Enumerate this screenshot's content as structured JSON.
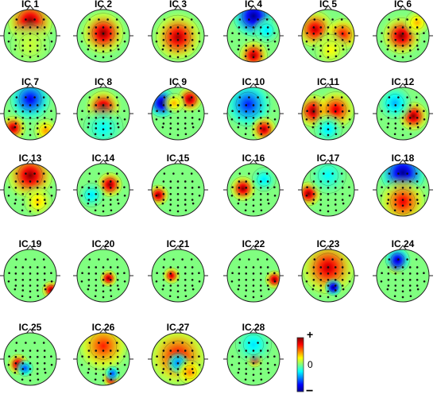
{
  "figure": {
    "colorbar": {
      "top_label": "+",
      "mid_label": "0",
      "bottom_label": "−"
    },
    "colormap": [
      "#00008f",
      "#0000ff",
      "#0080ff",
      "#00ffff",
      "#80ff80",
      "#ffff00",
      "#ff8000",
      "#ff0000",
      "#800000"
    ],
    "components": [
      {
        "label": "IC 1",
        "blobs": [
          [
            0.0,
            -0.55,
            0.55,
            1.0
          ],
          [
            0.0,
            0.35,
            0.5,
            0.15
          ]
        ]
      },
      {
        "label": "IC 2",
        "blobs": [
          [
            0.0,
            -0.1,
            0.5,
            1.0
          ]
        ]
      },
      {
        "label": "IC 3",
        "blobs": [
          [
            0.0,
            0.05,
            0.55,
            0.95
          ]
        ]
      },
      {
        "label": "IC 4",
        "blobs": [
          [
            0.0,
            -0.75,
            0.5,
            -1.0
          ],
          [
            0.0,
            0.75,
            0.35,
            0.95
          ],
          [
            0.5,
            -0.2,
            0.3,
            -0.3
          ]
        ]
      },
      {
        "label": "IC 5",
        "blobs": [
          [
            -0.5,
            -0.25,
            0.45,
            0.9
          ],
          [
            0.55,
            -0.05,
            0.4,
            0.75
          ],
          [
            0.1,
            0.55,
            0.4,
            0.25
          ]
        ]
      },
      {
        "label": "IC 6",
        "blobs": [
          [
            -0.05,
            0.0,
            0.45,
            1.0
          ],
          [
            0.55,
            -0.5,
            0.3,
            0.4
          ]
        ]
      },
      {
        "label": "IC 7",
        "blobs": [
          [
            0.0,
            -0.55,
            0.5,
            -0.8
          ],
          [
            -0.65,
            0.55,
            0.3,
            0.95
          ],
          [
            0.6,
            0.65,
            0.3,
            0.45
          ]
        ]
      },
      {
        "label": "IC 8",
        "blobs": [
          [
            0.0,
            -0.25,
            0.4,
            1.0
          ],
          [
            0.0,
            0.55,
            0.5,
            -0.25
          ]
        ]
      },
      {
        "label": "IC 9",
        "blobs": [
          [
            -0.6,
            -0.4,
            0.35,
            -1.0
          ],
          [
            0.45,
            -0.55,
            0.3,
            1.0
          ],
          [
            -0.15,
            -0.4,
            0.25,
            0.4
          ]
        ]
      },
      {
        "label": "IC 10",
        "blobs": [
          [
            -0.2,
            -0.35,
            0.55,
            -0.7
          ],
          [
            0.4,
            0.6,
            0.3,
            0.95
          ]
        ]
      },
      {
        "label": "IC 11",
        "blobs": [
          [
            -0.55,
            -0.1,
            0.4,
            1.0
          ],
          [
            0.3,
            -0.15,
            0.45,
            0.85
          ],
          [
            0.0,
            0.6,
            0.35,
            -0.3
          ]
        ]
      },
      {
        "label": "IC 12",
        "blobs": [
          [
            0.4,
            0.1,
            0.35,
            1.0
          ],
          [
            -0.3,
            -0.4,
            0.4,
            -0.4
          ]
        ]
      },
      {
        "label": "IC 13",
        "blobs": [
          [
            0.0,
            -0.55,
            0.55,
            1.0
          ],
          [
            0.3,
            0.45,
            0.35,
            0.35
          ]
        ]
      },
      {
        "label": "IC 14",
        "blobs": [
          [
            0.25,
            -0.2,
            0.3,
            1.0
          ],
          [
            -0.45,
            0.2,
            0.3,
            -0.3
          ]
        ]
      },
      {
        "label": "IC 15",
        "blobs": [
          [
            -0.75,
            0.2,
            0.25,
            1.0
          ]
        ]
      },
      {
        "label": "IC 16",
        "blobs": [
          [
            -0.4,
            -0.05,
            0.3,
            1.0
          ],
          [
            0.4,
            -0.4,
            0.3,
            -0.3
          ]
        ]
      },
      {
        "label": "IC 17",
        "blobs": [
          [
            -0.75,
            0.15,
            0.3,
            1.0
          ],
          [
            0.0,
            -0.55,
            0.45,
            -0.25
          ]
        ]
      },
      {
        "label": "IC 18",
        "blobs": [
          [
            0.0,
            -0.65,
            0.55,
            -1.0
          ],
          [
            0.0,
            0.45,
            0.55,
            0.8
          ]
        ]
      },
      {
        "label": "IC 19",
        "blobs": [
          [
            0.8,
            0.55,
            0.22,
            1.0
          ]
        ]
      },
      {
        "label": "IC 20",
        "blobs": [
          [
            0.2,
            0.1,
            0.2,
            1.0
          ]
        ]
      },
      {
        "label": "IC 21",
        "blobs": [
          [
            -0.25,
            0.0,
            0.2,
            0.9
          ]
        ]
      },
      {
        "label": "IC 22",
        "blobs": [
          [
            0.8,
            0.15,
            0.22,
            1.0
          ]
        ]
      },
      {
        "label": "IC 23",
        "blobs": [
          [
            0.0,
            -0.3,
            0.65,
            0.9
          ],
          [
            0.2,
            0.45,
            0.2,
            -1.0
          ]
        ]
      },
      {
        "label": "IC 24",
        "blobs": [
          [
            -0.25,
            -0.4,
            0.22,
            1.0
          ],
          [
            -0.2,
            -0.6,
            0.3,
            -0.9
          ]
        ]
      },
      {
        "label": "IC 25",
        "blobs": [
          [
            -0.45,
            0.2,
            0.25,
            1.0
          ],
          [
            -0.2,
            0.35,
            0.2,
            -0.6
          ]
        ]
      },
      {
        "label": "IC 26",
        "blobs": [
          [
            0.0,
            -0.5,
            0.6,
            0.7
          ],
          [
            0.3,
            0.75,
            0.2,
            1.0
          ],
          [
            0.35,
            0.55,
            0.18,
            -0.6
          ]
        ]
      },
      {
        "label": "IC 27",
        "blobs": [
          [
            0.0,
            -0.1,
            0.7,
            0.8
          ],
          [
            0.0,
            0.15,
            0.25,
            -0.5
          ],
          [
            0.45,
            0.5,
            0.3,
            0.5
          ]
        ]
      },
      {
        "label": "IC 28",
        "blobs": [
          [
            0.05,
            0.0,
            0.2,
            1.0
          ],
          [
            0.0,
            -0.55,
            0.45,
            -0.3
          ]
        ]
      }
    ]
  }
}
